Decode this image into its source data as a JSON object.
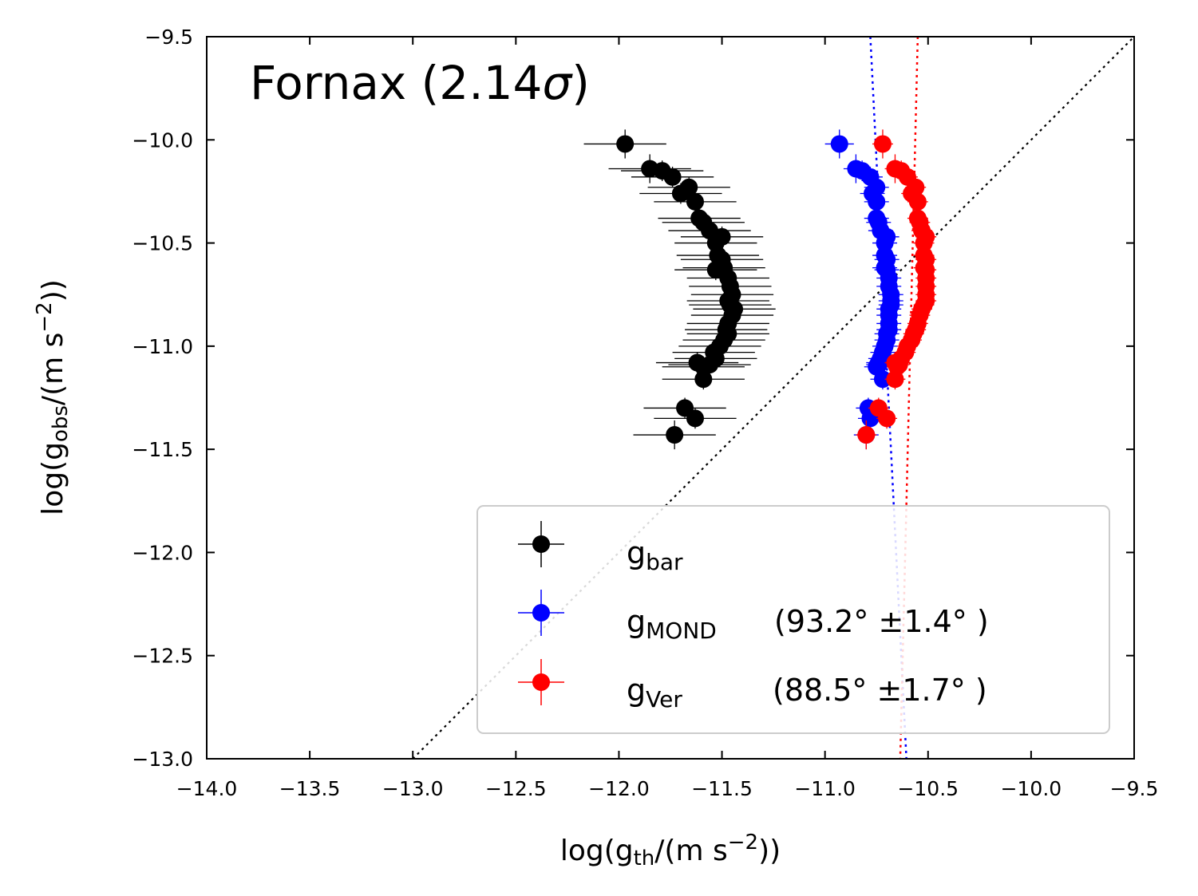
{
  "chart_data": {
    "type": "scatter",
    "title": "Fornax (2.14σ)",
    "title_prefix": "Fornax (2.14",
    "title_symbol": "σ",
    "title_suffix": ")",
    "xlabel": {
      "pre": "log(g",
      "sub": "th",
      "mid": "/(m s",
      "sup": "−2",
      "post": "))"
    },
    "ylabel": {
      "pre": "log(g",
      "sub": "obs",
      "mid": "/(m s",
      "sup": "−2",
      "post": "))"
    },
    "xlim": [
      -14.0,
      -9.5
    ],
    "ylim": [
      -13.0,
      -9.5
    ],
    "xticks": [
      -14.0,
      -13.5,
      -13.0,
      -12.5,
      -12.0,
      -11.5,
      -11.0,
      -10.5,
      -10.0,
      -9.5
    ],
    "xtick_labels": [
      "−14.0",
      "−13.5",
      "−13.0",
      "−12.5",
      "−12.0",
      "−11.5",
      "−11.0",
      "−10.5",
      "−10.0",
      "−9.5"
    ],
    "yticks": [
      -9.5,
      -10.0,
      -10.5,
      -11.0,
      -11.5,
      -12.0,
      -12.5,
      -13.0
    ],
    "ytick_labels": [
      "−9.5",
      "−10.0",
      "−10.5",
      "−11.0",
      "−11.5",
      "−12.0",
      "−12.5",
      "−13.0"
    ],
    "grid": false,
    "legend_location": "lower-right",
    "colors": {
      "bar": "#000000",
      "mond": "#0000ff",
      "ver": "#ff0000",
      "diag": "#000000",
      "legend_border": "#cccccc"
    },
    "one_to_one_line": {
      "x": [
        -13.0,
        -9.5
      ],
      "y": [
        -13.0,
        -9.5
      ]
    },
    "fit_lines": [
      {
        "series": "gMOND",
        "x": [
          -10.78,
          -10.605
        ],
        "y": [
          -9.5,
          -13.0
        ]
      },
      {
        "series": "gVer",
        "x": [
          -10.55,
          -10.635
        ],
        "y": [
          -9.5,
          -13.0
        ]
      }
    ],
    "series": [
      {
        "name": "gbar",
        "legend": {
          "base": "g",
          "sub": "bar",
          "angle": ""
        },
        "color": "#000000",
        "x": [
          -11.97,
          -11.85,
          -11.79,
          -11.74,
          -11.7,
          -11.66,
          -11.63,
          -11.61,
          -11.59,
          -11.56,
          -11.53,
          -11.5,
          -11.52,
          -11.5,
          -11.49,
          -11.53,
          -11.47,
          -11.46,
          -11.45,
          -11.47,
          -11.46,
          -11.44,
          -11.45,
          -11.47,
          -11.48,
          -11.47,
          -11.49,
          -11.51,
          -11.54,
          -11.53,
          -11.56,
          -11.59,
          -11.62,
          -11.59,
          -11.68,
          -11.63,
          -11.73
        ],
        "y": [
          -10.02,
          -10.14,
          -10.15,
          -10.18,
          -10.26,
          -10.23,
          -10.3,
          -10.38,
          -10.4,
          -10.44,
          -10.5,
          -10.47,
          -10.56,
          -10.58,
          -10.62,
          -10.63,
          -10.67,
          -10.71,
          -10.75,
          -10.78,
          -10.8,
          -10.82,
          -10.85,
          -10.89,
          -10.92,
          -10.94,
          -10.97,
          -11.0,
          -11.03,
          -11.06,
          -11.09,
          -11.1,
          -11.08,
          -11.16,
          -11.3,
          -11.35,
          -11.43
        ],
        "xerr": [
          0.2,
          0.2,
          0.2,
          0.2,
          0.2,
          0.2,
          0.2,
          0.2,
          0.2,
          0.2,
          0.2,
          0.2,
          0.2,
          0.2,
          0.2,
          0.2,
          0.2,
          0.2,
          0.2,
          0.2,
          0.2,
          0.2,
          0.2,
          0.2,
          0.2,
          0.2,
          0.2,
          0.2,
          0.2,
          0.2,
          0.2,
          0.2,
          0.2,
          0.2,
          0.2,
          0.2,
          0.2
        ],
        "yerr": [
          0.07,
          0.07,
          0.05,
          0.05,
          0.05,
          0.05,
          0.05,
          0.05,
          0.05,
          0.05,
          0.05,
          0.05,
          0.05,
          0.05,
          0.05,
          0.05,
          0.05,
          0.05,
          0.05,
          0.05,
          0.05,
          0.05,
          0.05,
          0.05,
          0.05,
          0.05,
          0.05,
          0.05,
          0.05,
          0.05,
          0.05,
          0.05,
          0.05,
          0.05,
          0.05,
          0.05,
          0.07
        ]
      },
      {
        "name": "gMOND",
        "legend": {
          "base": "g",
          "sub": "MOND",
          "angle": "(93.2° ±1.4° )"
        },
        "color": "#0000ff",
        "x": [
          -10.93,
          -10.85,
          -10.82,
          -10.78,
          -10.77,
          -10.75,
          -10.75,
          -10.75,
          -10.74,
          -10.73,
          -10.71,
          -10.7,
          -10.71,
          -10.7,
          -10.71,
          -10.7,
          -10.69,
          -10.69,
          -10.68,
          -10.68,
          -10.68,
          -10.69,
          -10.69,
          -10.69,
          -10.69,
          -10.7,
          -10.7,
          -10.71,
          -10.72,
          -10.73,
          -10.74,
          -10.75,
          -10.74,
          -10.72,
          -10.79,
          -10.78,
          -10.8
        ],
        "y": [
          -10.02,
          -10.14,
          -10.15,
          -10.18,
          -10.26,
          -10.23,
          -10.3,
          -10.38,
          -10.4,
          -10.44,
          -10.5,
          -10.47,
          -10.56,
          -10.58,
          -10.62,
          -10.63,
          -10.67,
          -10.71,
          -10.75,
          -10.78,
          -10.8,
          -10.82,
          -10.85,
          -10.89,
          -10.92,
          -10.94,
          -10.97,
          -11.0,
          -11.03,
          -11.06,
          -11.09,
          -11.1,
          -11.08,
          -11.16,
          -11.3,
          -11.35,
          -11.43
        ],
        "xerr": [
          0.07,
          0.06,
          0.06,
          0.06,
          0.06,
          0.06,
          0.06,
          0.06,
          0.06,
          0.06,
          0.06,
          0.06,
          0.06,
          0.06,
          0.06,
          0.06,
          0.06,
          0.06,
          0.06,
          0.06,
          0.06,
          0.06,
          0.06,
          0.06,
          0.06,
          0.06,
          0.06,
          0.06,
          0.06,
          0.06,
          0.06,
          0.06,
          0.06,
          0.06,
          0.06,
          0.06,
          0.06
        ],
        "yerr": [
          0.07,
          0.07,
          0.05,
          0.05,
          0.05,
          0.05,
          0.05,
          0.05,
          0.05,
          0.05,
          0.05,
          0.05,
          0.05,
          0.05,
          0.05,
          0.05,
          0.05,
          0.05,
          0.05,
          0.05,
          0.05,
          0.05,
          0.05,
          0.05,
          0.05,
          0.05,
          0.05,
          0.05,
          0.05,
          0.05,
          0.05,
          0.05,
          0.05,
          0.05,
          0.05,
          0.05,
          0.07
        ]
      },
      {
        "name": "gVer",
        "legend": {
          "base": "g",
          "sub": "Ver",
          "angle": "(88.5° ±1.7° )"
        },
        "color": "#ff0000",
        "x": [
          -10.72,
          -10.66,
          -10.63,
          -10.6,
          -10.58,
          -10.56,
          -10.55,
          -10.55,
          -10.54,
          -10.53,
          -10.52,
          -10.51,
          -10.52,
          -10.51,
          -10.52,
          -10.51,
          -10.51,
          -10.51,
          -10.51,
          -10.51,
          -10.52,
          -10.53,
          -10.54,
          -10.55,
          -10.56,
          -10.57,
          -10.58,
          -10.6,
          -10.61,
          -10.63,
          -10.64,
          -10.65,
          -10.66,
          -10.66,
          -10.74,
          -10.7,
          -10.8
        ],
        "y": [
          -10.02,
          -10.14,
          -10.15,
          -10.18,
          -10.26,
          -10.23,
          -10.3,
          -10.38,
          -10.4,
          -10.44,
          -10.5,
          -10.47,
          -10.56,
          -10.58,
          -10.62,
          -10.63,
          -10.67,
          -10.71,
          -10.75,
          -10.78,
          -10.8,
          -10.82,
          -10.85,
          -10.89,
          -10.92,
          -10.94,
          -10.97,
          -11.0,
          -11.03,
          -11.06,
          -11.09,
          -11.1,
          -11.08,
          -11.16,
          -11.3,
          -11.35,
          -11.43
        ],
        "xerr": [
          0.05,
          0.05,
          0.05,
          0.05,
          0.05,
          0.05,
          0.05,
          0.05,
          0.05,
          0.05,
          0.05,
          0.05,
          0.05,
          0.05,
          0.05,
          0.05,
          0.05,
          0.05,
          0.05,
          0.05,
          0.05,
          0.05,
          0.05,
          0.05,
          0.05,
          0.05,
          0.05,
          0.05,
          0.05,
          0.05,
          0.05,
          0.05,
          0.05,
          0.05,
          0.05,
          0.05,
          0.05
        ],
        "yerr": [
          0.07,
          0.07,
          0.05,
          0.05,
          0.05,
          0.05,
          0.05,
          0.05,
          0.05,
          0.05,
          0.05,
          0.05,
          0.05,
          0.05,
          0.05,
          0.05,
          0.05,
          0.05,
          0.05,
          0.05,
          0.05,
          0.05,
          0.05,
          0.05,
          0.05,
          0.05,
          0.05,
          0.05,
          0.05,
          0.05,
          0.05,
          0.05,
          0.05,
          0.05,
          0.05,
          0.05,
          0.07
        ]
      }
    ]
  }
}
